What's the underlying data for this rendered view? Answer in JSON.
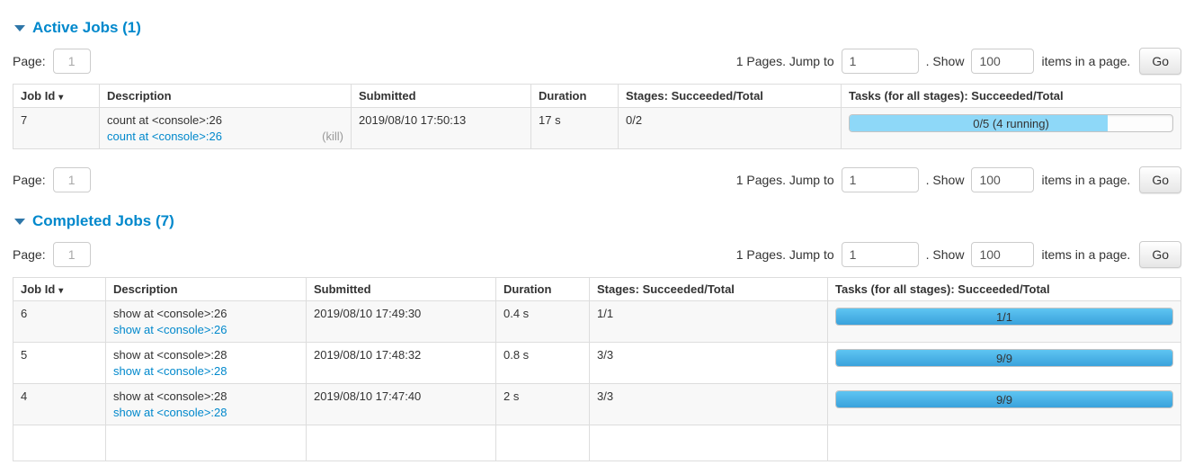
{
  "colors": {
    "accent": "#0088cc",
    "bar_completed_top": "#5ec5f2",
    "bar_completed_bottom": "#3aa2dc",
    "bar_running": "#8ed8f8"
  },
  "pagination": {
    "page_label": "Page:",
    "page_value": "1",
    "pages_text": "1 Pages. Jump to",
    "jump_value": "1",
    "show_text": ". Show",
    "show_value": "100",
    "items_text": "items in a page.",
    "go_label": "Go"
  },
  "table_headers": {
    "job_id": "Job Id",
    "sort_arrow": "▾",
    "description": "Description",
    "submitted": "Submitted",
    "duration": "Duration",
    "stages": "Stages: Succeeded/Total",
    "tasks": "Tasks (for all stages): Succeeded/Total"
  },
  "active": {
    "title": "Active Jobs (1)",
    "rows": [
      {
        "job_id": "7",
        "description": "count at <console>:26",
        "description_link": "count at <console>:26",
        "kill_label": "(kill)",
        "submitted": "2019/08/10 17:50:13",
        "duration": "17 s",
        "stages": "0/2",
        "tasks_label": "0/5 (4 running)",
        "tasks_progress_percent": 80,
        "tasks_state": "running"
      }
    ]
  },
  "completed": {
    "title": "Completed Jobs (7)",
    "rows": [
      {
        "job_id": "6",
        "description": "show at <console>:26",
        "description_link": "show at <console>:26",
        "submitted": "2019/08/10 17:49:30",
        "duration": "0.4 s",
        "stages": "1/1",
        "tasks_label": "1/1",
        "tasks_progress_percent": 100,
        "tasks_state": "completed"
      },
      {
        "job_id": "5",
        "description": "show at <console>:28",
        "description_link": "show at <console>:28",
        "submitted": "2019/08/10 17:48:32",
        "duration": "0.8 s",
        "stages": "3/3",
        "tasks_label": "9/9",
        "tasks_progress_percent": 100,
        "tasks_state": "completed"
      },
      {
        "job_id": "4",
        "description": "show at <console>:28",
        "description_link": "show at <console>:28",
        "submitted": "2019/08/10 17:47:40",
        "duration": "2 s",
        "stages": "3/3",
        "tasks_label": "9/9",
        "tasks_progress_percent": 100,
        "tasks_state": "completed"
      }
    ]
  }
}
